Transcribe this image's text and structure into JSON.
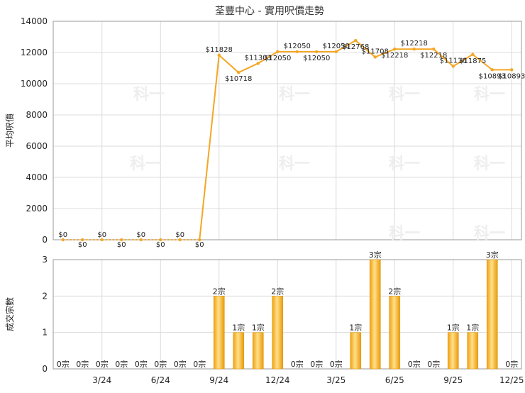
{
  "chart_data": [
    {
      "type": "line",
      "title": "荃豐中心 - 實用呎價走勢",
      "ylabel": "平均呎價",
      "ylim": [
        0,
        14000
      ],
      "yticks": [
        0,
        2000,
        4000,
        6000,
        8000,
        10000,
        12000,
        14000
      ],
      "grid": true,
      "color": "#f5a623",
      "values": [
        0,
        0,
        0,
        0,
        0,
        0,
        0,
        0,
        11828,
        10718,
        11303,
        12050,
        12050,
        12050,
        12050,
        12768,
        11708,
        12218,
        12218,
        12218,
        11116,
        11875,
        10893,
        10893
      ],
      "labels": [
        "$0",
        "$0",
        "$0",
        "$0",
        "$0",
        "$0",
        "$0",
        "$0",
        "$11828",
        "$10718",
        "$11303",
        "$12050",
        "$12050",
        "$12050",
        "$12050",
        "$12768",
        "$11708",
        "$12218",
        "$12218",
        "$12218",
        "$11116",
        "$11875",
        "$10893",
        "$10893"
      ]
    },
    {
      "type": "bar",
      "ylabel": "成交宗數",
      "ylim": [
        0,
        3
      ],
      "yticks": [
        0,
        1,
        2,
        3
      ],
      "grid": true,
      "color": "#f5a623",
      "values": [
        0,
        0,
        0,
        0,
        0,
        0,
        0,
        0,
        2,
        1,
        1,
        2,
        0,
        0,
        0,
        1,
        3,
        2,
        0,
        0,
        1,
        1,
        3,
        0
      ],
      "labels": [
        "0宗",
        "0宗",
        "0宗",
        "0宗",
        "0宗",
        "0宗",
        "0宗",
        "0宗",
        "2宗",
        "1宗",
        "1宗",
        "2宗",
        "0宗",
        "0宗",
        "0宗",
        "1宗",
        "3宗",
        "2宗",
        "0宗",
        "0宗",
        "1宗",
        "1宗",
        "3宗",
        "0宗"
      ],
      "xticks": [
        {
          "index": 2,
          "label": "3/24"
        },
        {
          "index": 5,
          "label": "6/24"
        },
        {
          "index": 8,
          "label": "9/24"
        },
        {
          "index": 11,
          "label": "12/24"
        },
        {
          "index": 14,
          "label": "3/25"
        },
        {
          "index": 17,
          "label": "6/25"
        },
        {
          "index": 20,
          "label": "9/25"
        },
        {
          "index": 23,
          "label": "12/25"
        }
      ]
    }
  ],
  "watermark": "科一"
}
